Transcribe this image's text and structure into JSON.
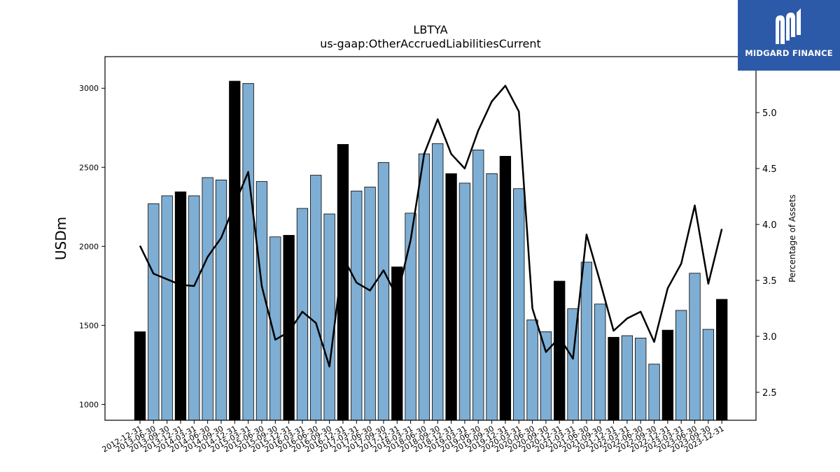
{
  "brand": {
    "name": "MIDGARD FINANCE",
    "color": "#2d5aa8",
    "icon": "midgard-m-logo-icon"
  },
  "chart_data": {
    "type": "bar",
    "title": "LBTYA",
    "subtitle": "us-gaap:OtherAccruedLiabilitiesCurrent",
    "ylabel": "USDm",
    "y2label": "Percentage of Assets",
    "ylim": [
      900,
      3200
    ],
    "y2lim": [
      2.25,
      5.5
    ],
    "yticks": [
      1000,
      1500,
      2000,
      2500,
      3000
    ],
    "y2ticks": [
      2.5,
      3.0,
      3.5,
      4.0,
      4.5,
      5.0
    ],
    "y2tick_labels": [
      "2.5",
      "3.0",
      "3.5",
      "4.0",
      "4.5",
      "5.0"
    ],
    "grid": false,
    "bar_color": "#7eaed3",
    "highlight_color": "#000000",
    "line_color": "#000000",
    "categories": [
      "2012-12-31",
      "2013-06-30",
      "2013-09-30",
      "2013-12-31",
      "2014-03-31",
      "2014-06-30",
      "2014-09-30",
      "2014-12-31",
      "2015-03-31",
      "2015-06-30",
      "2015-09-30",
      "2015-12-31",
      "2016-03-31",
      "2016-06-30",
      "2016-09-30",
      "2016-12-31",
      "2017-03-31",
      "2017-06-30",
      "2017-09-30",
      "2017-12-31",
      "2018-03-31",
      "2018-06-30",
      "2018-09-30",
      "2018-12-31",
      "2019-03-31",
      "2019-06-30",
      "2019-09-30",
      "2019-12-31",
      "2020-03-31",
      "2020-06-30",
      "2020-09-30",
      "2020-12-31",
      "2021-03-31",
      "2021-06-30",
      "2021-09-30",
      "2021-12-31",
      "2022-03-31",
      "2022-06-30",
      "2022-09-30",
      "2022-12-31",
      "2023-03-31",
      "2023-06-30",
      "2023-09-30",
      "2023-12-31"
    ],
    "values": [
      1460,
      2270,
      2320,
      2345,
      2320,
      2435,
      2420,
      3045,
      3030,
      2410,
      2060,
      2070,
      2240,
      2450,
      2205,
      2645,
      2350,
      2375,
      2530,
      1870,
      2210,
      2585,
      2650,
      2460,
      2400,
      2610,
      2460,
      2570,
      2365,
      1535,
      1460,
      1780,
      1605,
      1900,
      1635,
      1425,
      1435,
      1420,
      1255,
      1470,
      1595,
      1830,
      1475,
      1665
    ],
    "highlight": [
      true,
      false,
      false,
      true,
      false,
      false,
      false,
      true,
      false,
      false,
      false,
      true,
      false,
      false,
      false,
      true,
      false,
      false,
      false,
      true,
      false,
      false,
      false,
      true,
      false,
      false,
      false,
      true,
      false,
      false,
      false,
      true,
      false,
      false,
      false,
      true,
      false,
      false,
      false,
      true,
      false,
      false,
      false,
      true
    ],
    "pct_assets": [
      3.81,
      3.56,
      3.51,
      3.46,
      3.45,
      3.71,
      3.88,
      4.18,
      4.47,
      3.45,
      2.97,
      3.04,
      3.22,
      3.12,
      2.73,
      3.71,
      3.48,
      3.41,
      3.59,
      3.35,
      3.86,
      4.63,
      4.94,
      4.63,
      4.5,
      4.84,
      5.1,
      5.24,
      5.01,
      3.25,
      2.86,
      2.99,
      2.8,
      3.91,
      3.49,
      3.05,
      3.16,
      3.22,
      2.95,
      3.43,
      3.65,
      4.17,
      3.47,
      3.96
    ]
  }
}
